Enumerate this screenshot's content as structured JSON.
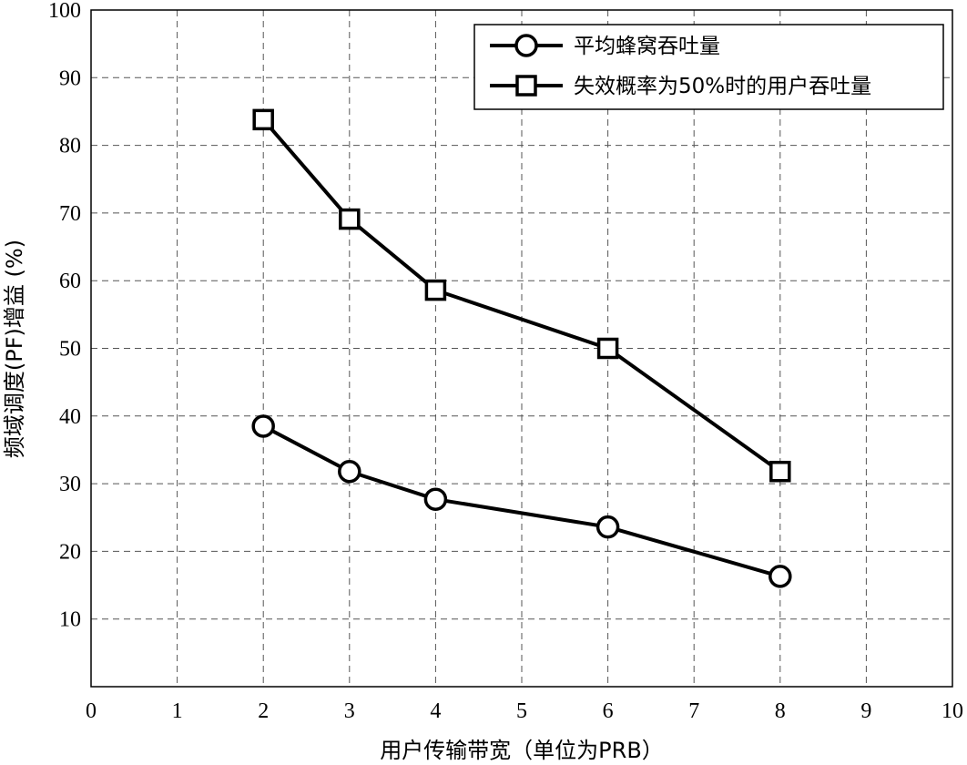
{
  "chart_data": {
    "type": "line",
    "xlabel": "用户传输带宽（单位为PRB）",
    "ylabel": "频域调度(PF)增益 (%)",
    "xlim": [
      0,
      10
    ],
    "ylim": [
      0,
      100
    ],
    "xticks": [
      0,
      1,
      2,
      3,
      4,
      5,
      6,
      7,
      8,
      9,
      10
    ],
    "yticks": [
      10,
      20,
      30,
      40,
      50,
      60,
      70,
      80,
      90,
      100
    ],
    "grid": true,
    "legend_position": "top-right",
    "series": [
      {
        "name": "平均蜂窝吞吐量",
        "marker": "circle",
        "color": "#000000",
        "x": [
          2,
          3,
          4,
          6,
          8
        ],
        "y": [
          38.5,
          31.8,
          27.7,
          23.6,
          16.3
        ]
      },
      {
        "name": "失效概率为50%时的用户吞吐量",
        "marker": "square",
        "color": "#000000",
        "x": [
          2,
          3,
          4,
          6,
          8
        ],
        "y": [
          83.8,
          69.1,
          58.6,
          50.0,
          31.8
        ]
      }
    ]
  }
}
